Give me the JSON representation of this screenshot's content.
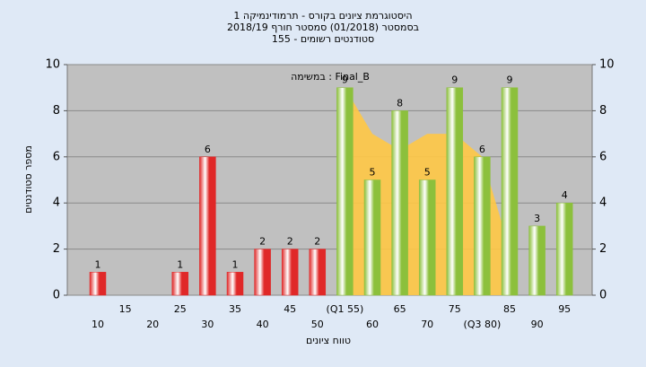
{
  "chart_data": {
    "type": "bar",
    "title": "היסטוגרמת ציונים בקורס - תרמודינמיקה 1",
    "subtitle": "בסמסטר  (01/2018)  סמסטר חורף 2018/19",
    "subtitle2": "סטודנטים רשומים - 155",
    "annotation": "במשימה : Final_B",
    "xlabel": "טווח ציונים",
    "ylabel": "מספר סטודנטים",
    "categories": [
      "10",
      "15",
      "20",
      "25",
      "30",
      "35",
      "40",
      "45",
      "50",
      "(Q1 55)",
      "60",
      "65",
      "70",
      "75",
      "(Q3 80)",
      "85",
      "90",
      "95"
    ],
    "values": [
      1,
      0,
      0,
      1,
      6,
      1,
      2,
      2,
      2,
      9,
      5,
      8,
      5,
      9,
      6,
      9,
      3,
      4
    ],
    "colors": [
      "#e02828",
      "#e02828",
      "#e02828",
      "#e02828",
      "#e02828",
      "#e02828",
      "#e02828",
      "#e02828",
      "#e02828",
      "#8cc03c",
      "#8cc03c",
      "#8cc03c",
      "#8cc03c",
      "#8cc03c",
      "#8cc03c",
      "#8cc03c",
      "#8cc03c",
      "#8cc03c"
    ],
    "area": {
      "color": "#ffc845",
      "values": [
        null,
        null,
        null,
        null,
        null,
        null,
        null,
        null,
        null,
        9,
        7,
        6.3,
        7,
        7,
        6,
        2,
        null,
        null
      ]
    },
    "ylim": [
      0,
      10
    ],
    "yticks": [
      0,
      2,
      4,
      6,
      8,
      10
    ],
    "y2lim": [
      0,
      10
    ],
    "y2ticks": [
      0,
      2,
      4,
      6,
      8,
      10
    ],
    "grid": true
  }
}
